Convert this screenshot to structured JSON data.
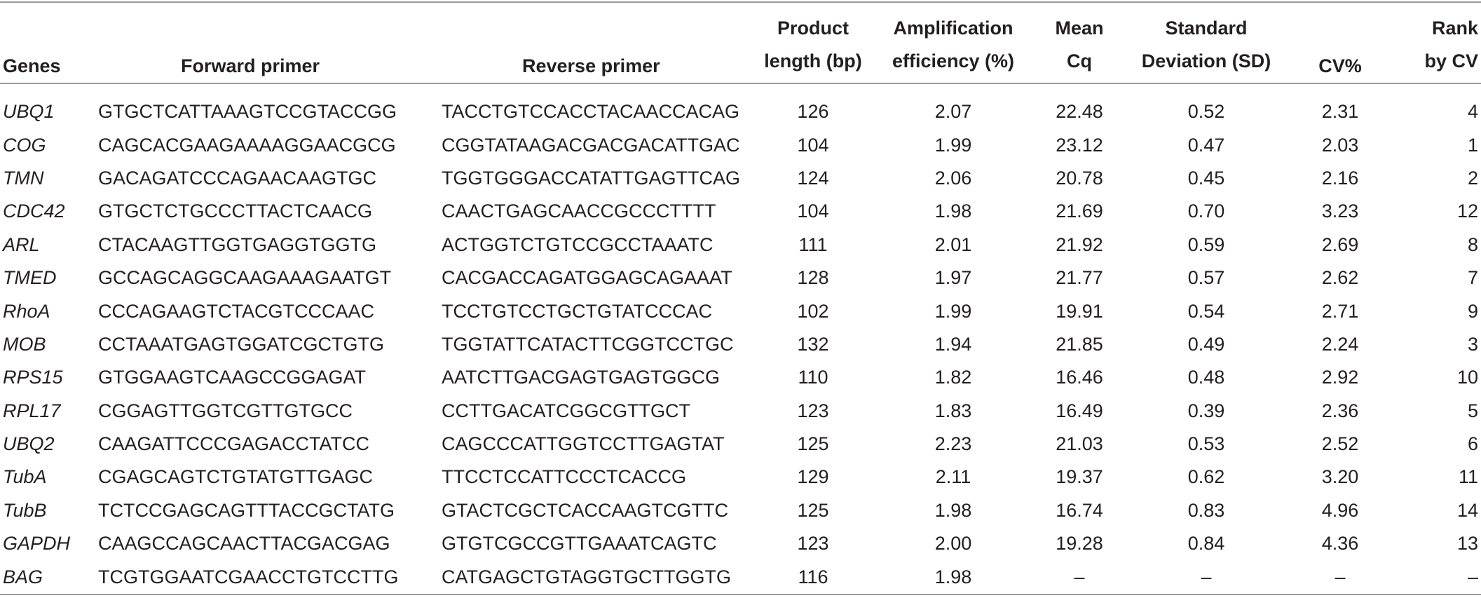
{
  "headers": {
    "genes": "Genes",
    "forward": "Forward primer",
    "reverse": "Reverse primer",
    "length_l1": "Product",
    "length_l2": "length (bp)",
    "eff_l1": "Amplification",
    "eff_l2": "efficiency (%)",
    "cq_l1": "Mean",
    "cq_l2": "Cq",
    "sd_l1": "Standard",
    "sd_l2": "Deviation (SD)",
    "cv": "CV%",
    "rank_l1": "Rank",
    "rank_l2": "by CV"
  },
  "rows": [
    {
      "gene": "UBQ1",
      "forward": "GTGCTCATTAAAGTCCGTACCGG",
      "reverse": "TACCTGTCCACCTACAACCACAG",
      "length": "126",
      "eff": "2.07",
      "cq": "22.48",
      "sd": "0.52",
      "cv": "2.31",
      "rank": "4"
    },
    {
      "gene": "COG",
      "forward": "CAGCACGAAGAAAAGGAACGCG",
      "reverse": "CGGTATAAGACGACGACATTGAC",
      "length": "104",
      "eff": "1.99",
      "cq": "23.12",
      "sd": "0.47",
      "cv": "2.03",
      "rank": "1"
    },
    {
      "gene": "TMN",
      "forward": "GACAGATCCCAGAACAAGTGC",
      "reverse": "TGGTGGGACCATATTGAGTTCAG",
      "length": "124",
      "eff": "2.06",
      "cq": "20.78",
      "sd": "0.45",
      "cv": "2.16",
      "rank": "2"
    },
    {
      "gene": "CDC42",
      "forward": "GTGCTCTGCCCTTACTCAACG",
      "reverse": "CAACTGAGCAACCGCCCTTTT",
      "length": "104",
      "eff": "1.98",
      "cq": "21.69",
      "sd": "0.70",
      "cv": "3.23",
      "rank": "12"
    },
    {
      "gene": "ARL",
      "forward": "CTACAAGTTGGTGAGGTGGTG",
      "reverse": "ACTGGTCTGTCCGCCTAAATC",
      "length": "111",
      "eff": "2.01",
      "cq": "21.92",
      "sd": "0.59",
      "cv": "2.69",
      "rank": "8"
    },
    {
      "gene": "TMED",
      "forward": "GCCAGCAGGCAAGAAAGAATGT",
      "reverse": "CACGACCAGATGGAGCAGAAAT",
      "length": "128",
      "eff": "1.97",
      "cq": "21.77",
      "sd": "0.57",
      "cv": "2.62",
      "rank": "7"
    },
    {
      "gene": "RhoA",
      "forward": "CCCAGAAGTCTACGTCCCAAC",
      "reverse": "TCCTGTCCTGCTGTATCCCAC",
      "length": "102",
      "eff": "1.99",
      "cq": "19.91",
      "sd": "0.54",
      "cv": "2.71",
      "rank": "9"
    },
    {
      "gene": "MOB",
      "forward": "CCTAAATGAGTGGATCGCTGTG",
      "reverse": "TGGTATTCATACTTCGGTCCTGC",
      "length": "132",
      "eff": "1.94",
      "cq": "21.85",
      "sd": "0.49",
      "cv": "2.24",
      "rank": "3"
    },
    {
      "gene": "RPS15",
      "forward": "GTGGAAGTCAAGCCGGAGAT",
      "reverse": "AATCTTGACGAGTGAGTGGCG",
      "length": "110",
      "eff": "1.82",
      "cq": "16.46",
      "sd": "0.48",
      "cv": "2.92",
      "rank": "10"
    },
    {
      "gene": "RPL17",
      "forward": "CGGAGTTGGTCGTTGTGCC",
      "reverse": "CCTTGACATCGGCGTTGCT",
      "length": "123",
      "eff": "1.83",
      "cq": "16.49",
      "sd": "0.39",
      "cv": "2.36",
      "rank": "5"
    },
    {
      "gene": "UBQ2",
      "forward": "CAAGATTCCCGAGACCTATCC",
      "reverse": "CAGCCCATTGGTCCTTGAGTAT",
      "length": "125",
      "eff": "2.23",
      "cq": "21.03",
      "sd": "0.53",
      "cv": "2.52",
      "rank": "6"
    },
    {
      "gene": "TubA",
      "forward": "CGAGCAGTCTGTATGTTGAGC",
      "reverse": "TTCCTCCATTCCCTCACCG",
      "length": "129",
      "eff": "2.11",
      "cq": "19.37",
      "sd": "0.62",
      "cv": "3.20",
      "rank": "11"
    },
    {
      "gene": "TubB",
      "forward": "TCTCCGAGCAGTTTACCGCTATG",
      "reverse": "GTACTCGCTCACCAAGTCGTTC",
      "length": "125",
      "eff": "1.98",
      "cq": "16.74",
      "sd": "0.83",
      "cv": "4.96",
      "rank": "14"
    },
    {
      "gene": "GAPDH",
      "forward": "CAAGCCAGCAACTTACGACGAG",
      "reverse": "GTGTCGCCGTTGAAATCAGTC",
      "length": "123",
      "eff": "2.00",
      "cq": "19.28",
      "sd": "0.84",
      "cv": "4.36",
      "rank": "13"
    },
    {
      "gene": "BAG",
      "forward": "TCGTGGAATCGAACCTGTCCTTG",
      "reverse": "CATGAGCTGTAGGTGCTTGGTG",
      "length": "116",
      "eff": "1.98",
      "cq": "–",
      "sd": "–",
      "cv": "–",
      "rank": "–"
    }
  ]
}
